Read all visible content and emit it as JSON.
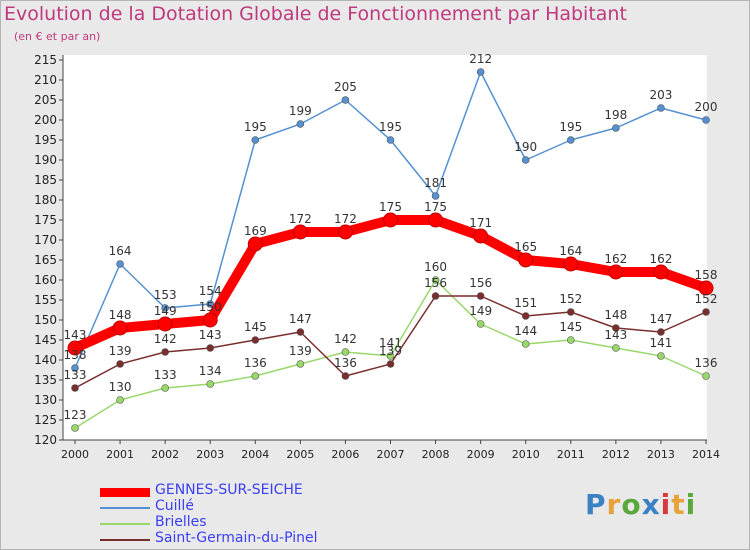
{
  "title": "Evolution de la Dotation Globale de Fonctionnement par Habitant",
  "subtitle": "(en € et par an)",
  "logo": {
    "text": "Proxiti",
    "colors": [
      "#3a82c4",
      "#e8a23c",
      "#5aa83c",
      "#3a82c4",
      "#d63a3a",
      "#e8a23c",
      "#5aa83c"
    ]
  },
  "chart_data": {
    "type": "line",
    "x": [
      "2000",
      "2001",
      "2002",
      "2003",
      "2004",
      "2005",
      "2006",
      "2007",
      "2008",
      "2009",
      "2010",
      "2011",
      "2012",
      "2013",
      "2014"
    ],
    "ylim": [
      120,
      215
    ],
    "yticks": [
      120,
      125,
      130,
      135,
      140,
      145,
      150,
      155,
      160,
      165,
      170,
      175,
      180,
      185,
      190,
      195,
      200,
      205,
      210,
      215
    ],
    "grid": false,
    "legend_position": "bottom-left",
    "series": [
      {
        "name": "GENNES-SUR-SEICHE",
        "color": "#ff0000",
        "values": [
          143,
          148,
          149,
          150,
          169,
          172,
          172,
          175,
          175,
          171,
          165,
          164,
          162,
          162,
          158
        ]
      },
      {
        "name": "Cuillé",
        "color": "#5591d0",
        "values": [
          138,
          164,
          153,
          154,
          195,
          199,
          205,
          195,
          181,
          212,
          190,
          195,
          198,
          203,
          200
        ]
      },
      {
        "name": "Brielles",
        "color": "#98d86a",
        "values": [
          123,
          130,
          133,
          134,
          136,
          139,
          142,
          141,
          160,
          149,
          144,
          145,
          143,
          141,
          136
        ]
      },
      {
        "name": "Saint-Germain-du-Pinel",
        "color": "#7a2d2d",
        "values": [
          133,
          139,
          142,
          143,
          145,
          147,
          136,
          139,
          156,
          156,
          151,
          152,
          148,
          147,
          152
        ]
      }
    ]
  }
}
